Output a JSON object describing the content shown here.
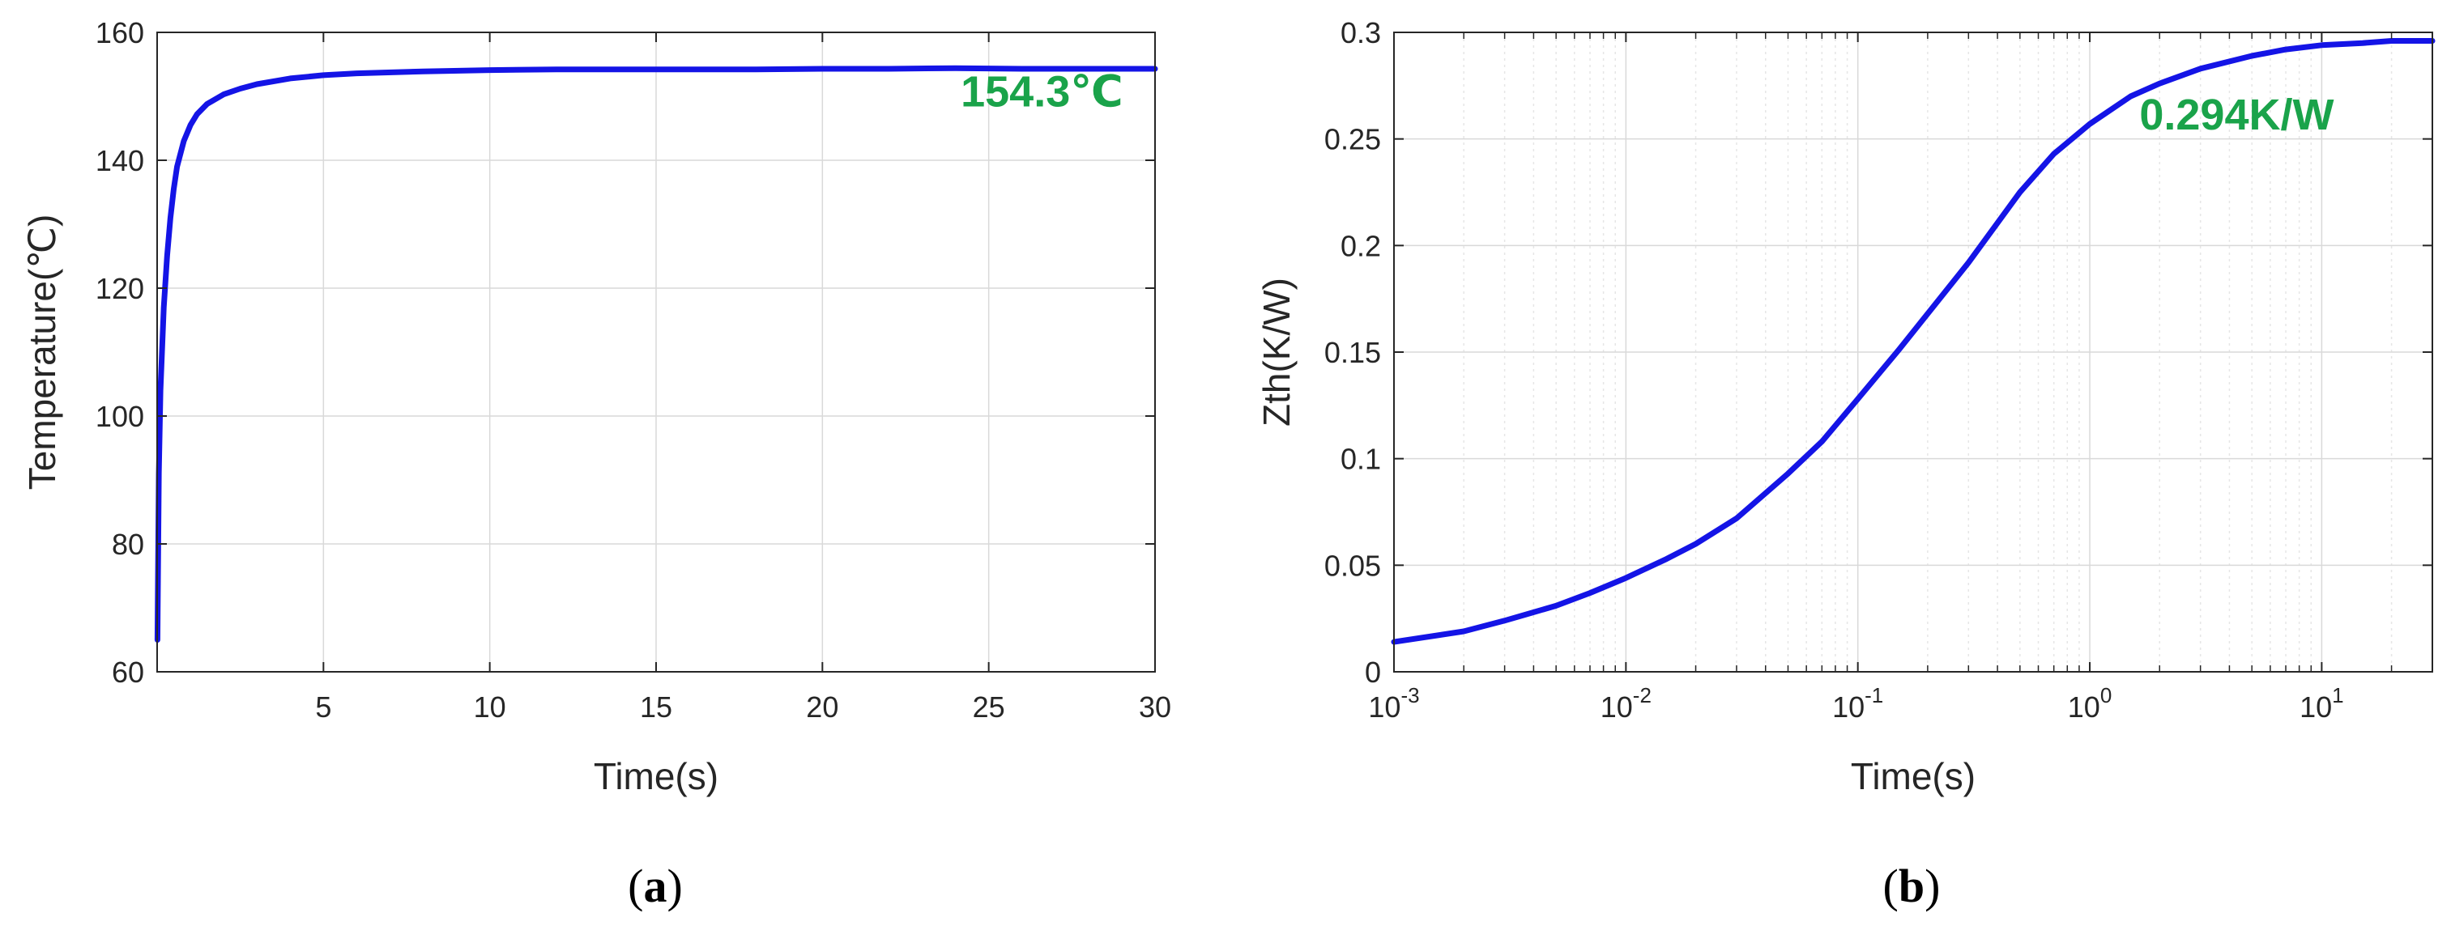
{
  "colors": {
    "line": "#1414e6",
    "annotation": "#1aa34a",
    "grid": "#d9d9d9",
    "axis": "#262626"
  },
  "chart_data": [
    {
      "id": "a",
      "type": "line",
      "panel_label": {
        "open": "(",
        "letter": "a",
        "close": ")"
      },
      "title": "",
      "xlabel": "Time(s)",
      "ylabel": "Temperature(℃)",
      "xscale": "linear",
      "xlim": [
        0,
        30
      ],
      "ylim": [
        60,
        160
      ],
      "xticks": [
        5,
        10,
        15,
        20,
        25,
        30
      ],
      "xtick_labels": [
        "5",
        "10",
        "15",
        "20",
        "25",
        "30"
      ],
      "yticks": [
        60,
        80,
        100,
        120,
        140,
        160
      ],
      "ytick_labels": [
        "60",
        "80",
        "100",
        "120",
        "140",
        "160"
      ],
      "grid": true,
      "annotation": {
        "text": "154.3℃",
        "x": 26.6,
        "y": 148.4
      },
      "series": [
        {
          "x": [
            0.01,
            0.05,
            0.1,
            0.2,
            0.3,
            0.4,
            0.5,
            0.6,
            0.8,
            1.0,
            1.2,
            1.5,
            2.0,
            2.5,
            3.0,
            4.0,
            5.0,
            6.0,
            8.0,
            10.0,
            12.0,
            15.0,
            18.0,
            20.0,
            22.0,
            24.0,
            26.0,
            28.0,
            30.0
          ],
          "y": [
            65.0,
            91.0,
            104.0,
            117.0,
            125.0,
            131.0,
            135.5,
            139.0,
            143.0,
            145.5,
            147.2,
            148.8,
            150.3,
            151.2,
            151.9,
            152.8,
            153.3,
            153.6,
            153.9,
            154.1,
            154.2,
            154.2,
            154.2,
            154.3,
            154.3,
            154.4,
            154.3,
            154.3,
            154.3
          ]
        }
      ]
    },
    {
      "id": "b",
      "type": "line",
      "panel_label": {
        "open": "(",
        "letter": "b",
        "close": ")"
      },
      "title": "",
      "xlabel": "Time(s)",
      "ylabel": "Zth(K/W)",
      "xscale": "log",
      "xlim": [
        0.001,
        30
      ],
      "ylim": [
        0,
        0.3
      ],
      "xticks": [
        0.001,
        0.01,
        0.1,
        1,
        10
      ],
      "xtick_labels": [
        {
          "base": "10",
          "exp": "-3"
        },
        {
          "base": "10",
          "exp": "-2"
        },
        {
          "base": "10",
          "exp": "-1"
        },
        {
          "base": "10",
          "exp": "0"
        },
        {
          "base": "10",
          "exp": "1"
        }
      ],
      "yticks": [
        0,
        0.05,
        0.1,
        0.15,
        0.2,
        0.25,
        0.3
      ],
      "ytick_labels": [
        "0",
        "0.05",
        "0.1",
        "0.15",
        "0.2",
        "0.25",
        "0.3"
      ],
      "grid": true,
      "annotation": {
        "text": "0.294K/W",
        "x": 4.3,
        "y": 0.2545
      },
      "series": [
        {
          "x": [
            0.001,
            0.002,
            0.003,
            0.005,
            0.007,
            0.01,
            0.015,
            0.02,
            0.03,
            0.05,
            0.07,
            0.1,
            0.15,
            0.2,
            0.3,
            0.5,
            0.7,
            1.0,
            1.5,
            2.0,
            3.0,
            5.0,
            7.0,
            10.0,
            15.0,
            20.0,
            30.0
          ],
          "y": [
            0.014,
            0.019,
            0.024,
            0.031,
            0.037,
            0.044,
            0.053,
            0.06,
            0.072,
            0.093,
            0.108,
            0.128,
            0.151,
            0.168,
            0.192,
            0.225,
            0.243,
            0.257,
            0.27,
            0.276,
            0.283,
            0.289,
            0.292,
            0.294,
            0.295,
            0.296,
            0.296
          ]
        }
      ]
    }
  ]
}
